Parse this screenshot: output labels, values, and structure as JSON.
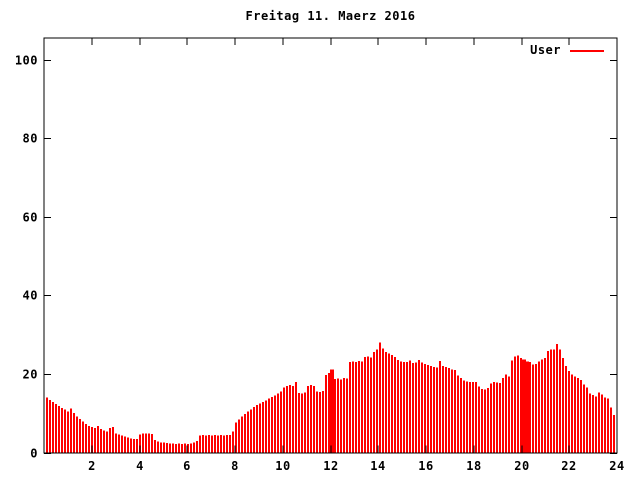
{
  "window": {
    "background": "#ffffff"
  },
  "chart_data": {
    "type": "bar",
    "style": "impulses",
    "title": "Freitag 11. Maerz 2016",
    "xlabel": "",
    "ylabel": "",
    "x_unit": "hour-of-day",
    "xlim": [
      0,
      24
    ],
    "ylim": [
      0,
      105.6
    ],
    "x_ticks": [
      2,
      4,
      6,
      8,
      10,
      12,
      14,
      16,
      18,
      20,
      22,
      24
    ],
    "y_ticks": [
      0,
      20,
      40,
      60,
      80,
      100
    ],
    "grid": false,
    "legend_position": "top-right-inside",
    "border_box": true,
    "colors": {
      "bar": "#ff0000",
      "axis": "#000000",
      "background": "#ffffff",
      "text": "#000000"
    },
    "first_sample_hour": 0.084,
    "sample_interval_hours": 0.1257,
    "dense_indices": [
      95,
      159,
      160
    ],
    "series": [
      {
        "name": "User",
        "color": "#ff0000",
        "values": [
          14.0,
          13.4,
          12.9,
          12.3,
          11.8,
          11.3,
          10.9,
          10.5,
          11.2,
          10.1,
          9.2,
          8.5,
          7.9,
          7.3,
          6.8,
          6.5,
          6.2,
          6.7,
          6.0,
          5.6,
          5.3,
          6.3,
          6.5,
          4.9,
          4.6,
          4.3,
          4.1,
          3.8,
          3.6,
          3.5,
          3.4,
          4.6,
          4.9,
          4.8,
          4.9,
          4.7,
          3.2,
          2.8,
          2.6,
          2.5,
          2.4,
          2.3,
          2.3,
          2.2,
          2.3,
          2.2,
          2.3,
          2.2,
          2.3,
          2.5,
          2.9,
          4.3,
          4.4,
          4.3,
          4.4,
          4.3,
          4.4,
          4.3,
          4.4,
          4.3,
          4.4,
          4.5,
          5.4,
          7.6,
          8.4,
          9.2,
          9.8,
          10.4,
          11.0,
          11.6,
          12.1,
          12.5,
          12.9,
          13.3,
          13.7,
          14.1,
          14.5,
          15.0,
          15.6,
          16.5,
          17.0,
          17.2,
          17.0,
          18.0,
          15.2,
          15.0,
          15.3,
          17.0,
          17.2,
          16.9,
          15.6,
          15.4,
          15.7,
          19.8,
          20.3,
          21.2,
          18.7,
          18.9,
          18.6,
          19.0,
          18.8,
          23.0,
          23.2,
          23.1,
          23.3,
          23.2,
          24.3,
          24.4,
          24.2,
          25.6,
          26.2,
          28.0,
          26.5,
          25.6,
          25.2,
          24.8,
          24.3,
          23.6,
          23.2,
          23.0,
          23.1,
          23.4,
          22.8,
          22.9,
          23.6,
          22.9,
          22.6,
          22.3,
          22.0,
          21.8,
          21.6,
          23.3,
          22.1,
          21.8,
          21.5,
          21.2,
          21.0,
          19.6,
          19.0,
          18.4,
          18.1,
          18.0,
          18.0,
          17.9,
          16.8,
          16.2,
          16.0,
          16.4,
          17.6,
          17.9,
          17.8,
          17.7,
          19.0,
          19.9,
          19.4,
          23.5,
          24.4,
          24.7,
          24.1,
          23.7,
          23.2,
          23.0,
          22.4,
          22.6,
          23.2,
          23.7,
          24.1,
          25.8,
          26.3,
          26.3,
          27.6,
          26.3,
          24.1,
          22.0,
          20.7,
          19.9,
          19.4,
          19.0,
          18.5,
          17.3,
          16.6,
          15.0,
          14.6,
          14.3,
          15.3,
          14.8,
          14.0,
          13.8,
          11.5,
          9.5
        ]
      }
    ]
  }
}
